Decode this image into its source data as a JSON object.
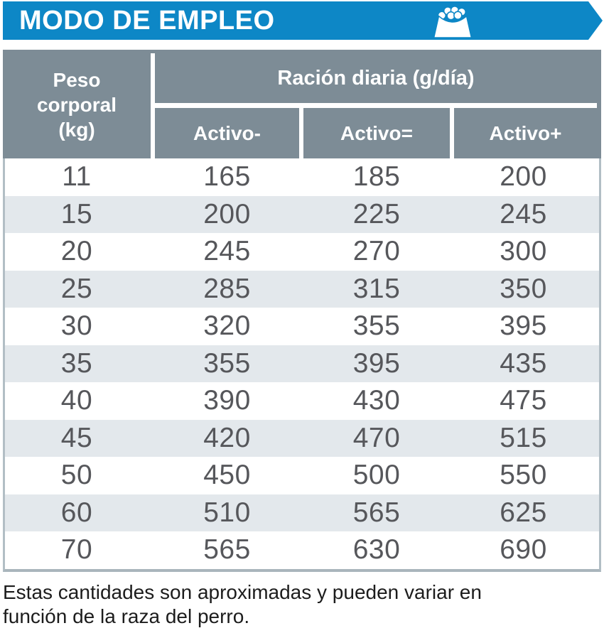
{
  "title_bar": {
    "title": "MODO DE EMPLEO",
    "icon": "dog-food-bowl-icon",
    "bg_color": "#0d87c6"
  },
  "table": {
    "weight_header_lines": [
      "Peso",
      "corporal",
      "(kg)"
    ],
    "ration_header": "Ración diaria (g/día)",
    "activity_columns": [
      "Activo-",
      "Activo=",
      "Activo+"
    ],
    "rows": [
      {
        "weight": "11",
        "values": [
          "165",
          "185",
          "200"
        ]
      },
      {
        "weight": "15",
        "values": [
          "200",
          "225",
          "245"
        ]
      },
      {
        "weight": "20",
        "values": [
          "245",
          "270",
          "300"
        ]
      },
      {
        "weight": "25",
        "values": [
          "285",
          "315",
          "350"
        ]
      },
      {
        "weight": "30",
        "values": [
          "320",
          "355",
          "395"
        ]
      },
      {
        "weight": "35",
        "values": [
          "355",
          "395",
          "435"
        ]
      },
      {
        "weight": "40",
        "values": [
          "390",
          "430",
          "475"
        ]
      },
      {
        "weight": "45",
        "values": [
          "420",
          "470",
          "515"
        ]
      },
      {
        "weight": "50",
        "values": [
          "450",
          "500",
          "550"
        ]
      },
      {
        "weight": "60",
        "values": [
          "510",
          "565",
          "625"
        ]
      },
      {
        "weight": "70",
        "values": [
          "565",
          "630",
          "690"
        ]
      }
    ]
  },
  "footnote": "Estas cantidades son aproximadas y pueden variar en función de la raza del perro.",
  "colors": {
    "banner_blue": "#0d87c6",
    "header_slate": "#7d8c96",
    "row_stripe": "#e3e8ec",
    "table_side_border": "#b2bec5",
    "table_bottom_border": "#a9b5bc",
    "number_text": "#56575b",
    "footnote_text": "#1c1c1c"
  }
}
